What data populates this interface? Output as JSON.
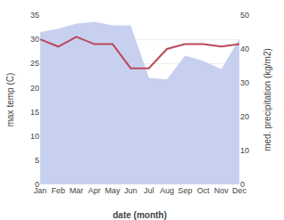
{
  "chart_data": {
    "type": "line",
    "categories": [
      "Jan",
      "Feb",
      "Mar",
      "Apr",
      "May",
      "Jun",
      "Jul",
      "Aug",
      "Sep",
      "Oct",
      "Nov",
      "Dec"
    ],
    "xlabel": "date (month)",
    "ylabel": "max temp (C)",
    "y2label": "med. precipitation (kg/m2)",
    "series": [
      {
        "type": "area",
        "color": "#c8d0f0",
        "axis": "y2",
        "values": [
          45.0,
          46.0,
          47.5,
          48.0,
          47.0,
          47.0,
          31.5,
          31.0,
          38.0,
          36.5,
          34.0,
          43.0
        ]
      },
      {
        "type": "line",
        "color": "#b94a5a",
        "values": [
          30.0,
          28.5,
          30.5,
          29.0,
          29.0,
          24.0,
          24.0,
          28.0,
          29.0,
          29.0,
          28.5,
          29.0
        ]
      }
    ],
    "ylim": [
      0,
      35
    ],
    "yticks": [
      0,
      5,
      10,
      15,
      20,
      25,
      30,
      35
    ],
    "y2lim": [
      0,
      50
    ],
    "y2ticks": [
      0,
      10,
      20,
      30,
      40,
      50
    ],
    "grid": true
  }
}
